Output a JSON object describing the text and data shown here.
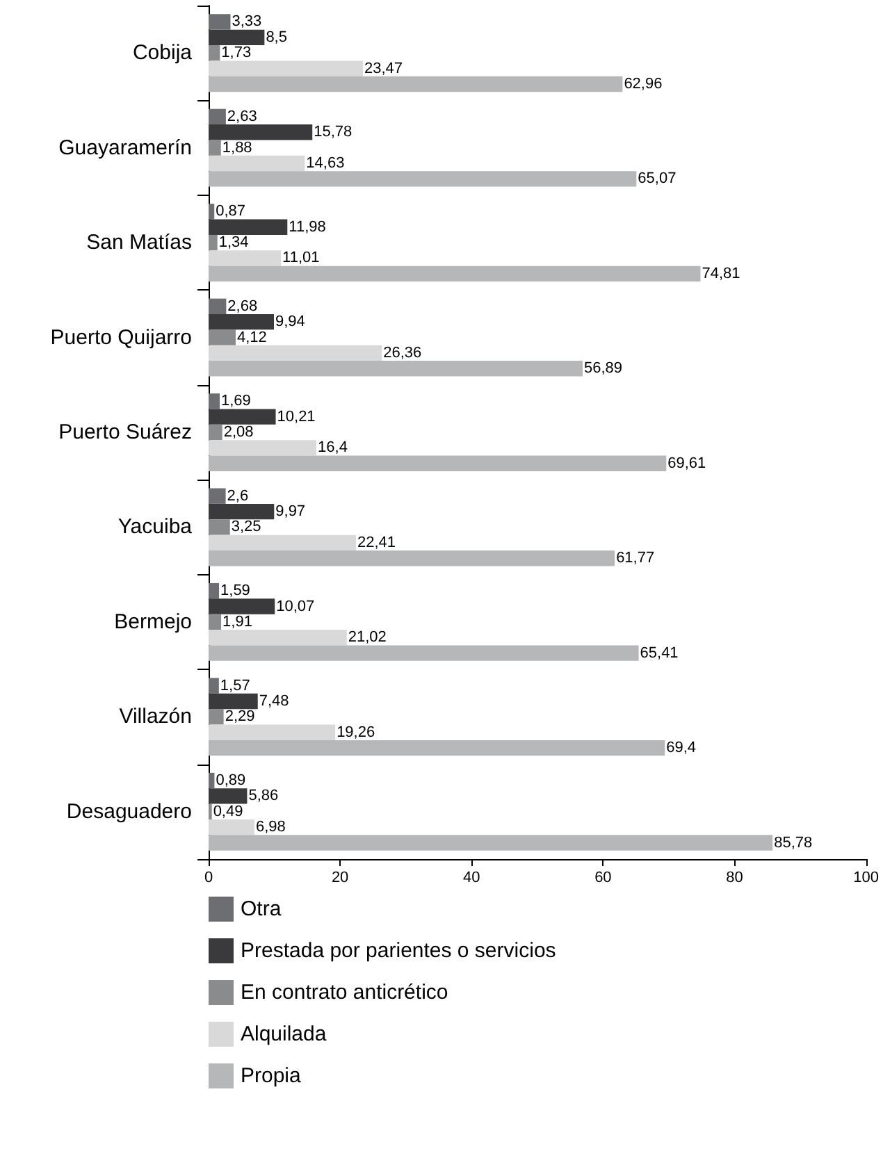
{
  "chart_data": {
    "type": "bar",
    "orientation": "horizontal",
    "legend": "bottom",
    "grid": false,
    "categories": [
      "Cobija",
      "Guayaramerín",
      "San Matías",
      "Puerto Quijarro",
      "Puerto Suárez",
      "Yacuiba",
      "Bermejo",
      "Villazón",
      "Desaguadero"
    ],
    "xlim": [
      0,
      100
    ],
    "xticks": [
      0,
      20,
      40,
      60,
      80,
      100
    ],
    "series": [
      {
        "name": "Otra",
        "color": "#6d6e71",
        "values": [
          3.33,
          2.63,
          0.87,
          2.68,
          1.69,
          2.6,
          1.59,
          1.57,
          0.89
        ],
        "value_labels": [
          "3,33",
          "2,63",
          "0,87",
          "2,68",
          "1,69",
          "2,6",
          "1,59",
          "1,57",
          "0,89"
        ]
      },
      {
        "name": "Prestada por parientes o servicios",
        "color": "#3a3a3c",
        "values": [
          8.5,
          15.78,
          11.98,
          9.94,
          10.21,
          9.97,
          10.07,
          7.48,
          5.86
        ],
        "value_labels": [
          "8,5",
          "15,78",
          "11,98",
          "9,94",
          "10,21",
          "9,97",
          "10,07",
          "7,48",
          "5,86"
        ]
      },
      {
        "name": "En contrato anticrético",
        "color": "#8a8b8d",
        "values": [
          1.73,
          1.88,
          1.34,
          4.12,
          2.08,
          3.25,
          1.91,
          2.29,
          0.49
        ],
        "value_labels": [
          "1,73",
          "1,88",
          "1,34",
          "4,12",
          "2,08",
          "3,25",
          "1,91",
          "2,29",
          "0,49"
        ]
      },
      {
        "name": "Alquilada",
        "color": "#d9d9da",
        "values": [
          23.47,
          14.63,
          11.01,
          26.36,
          16.4,
          22.41,
          21.02,
          19.26,
          6.98
        ],
        "value_labels": [
          "23,47",
          "14,63",
          "11,01",
          "26,36",
          "16,4",
          "22,41",
          "21,02",
          "19,26",
          "6,98"
        ]
      },
      {
        "name": "Propia",
        "color": "#b6b7b9",
        "values": [
          62.96,
          65.07,
          74.81,
          56.89,
          69.61,
          61.77,
          65.41,
          69.4,
          85.78
        ],
        "value_labels": [
          "62,96",
          "65,07",
          "74,81",
          "56,89",
          "69,61",
          "61,77",
          "65,41",
          "69,4",
          "85,78"
        ]
      }
    ]
  }
}
